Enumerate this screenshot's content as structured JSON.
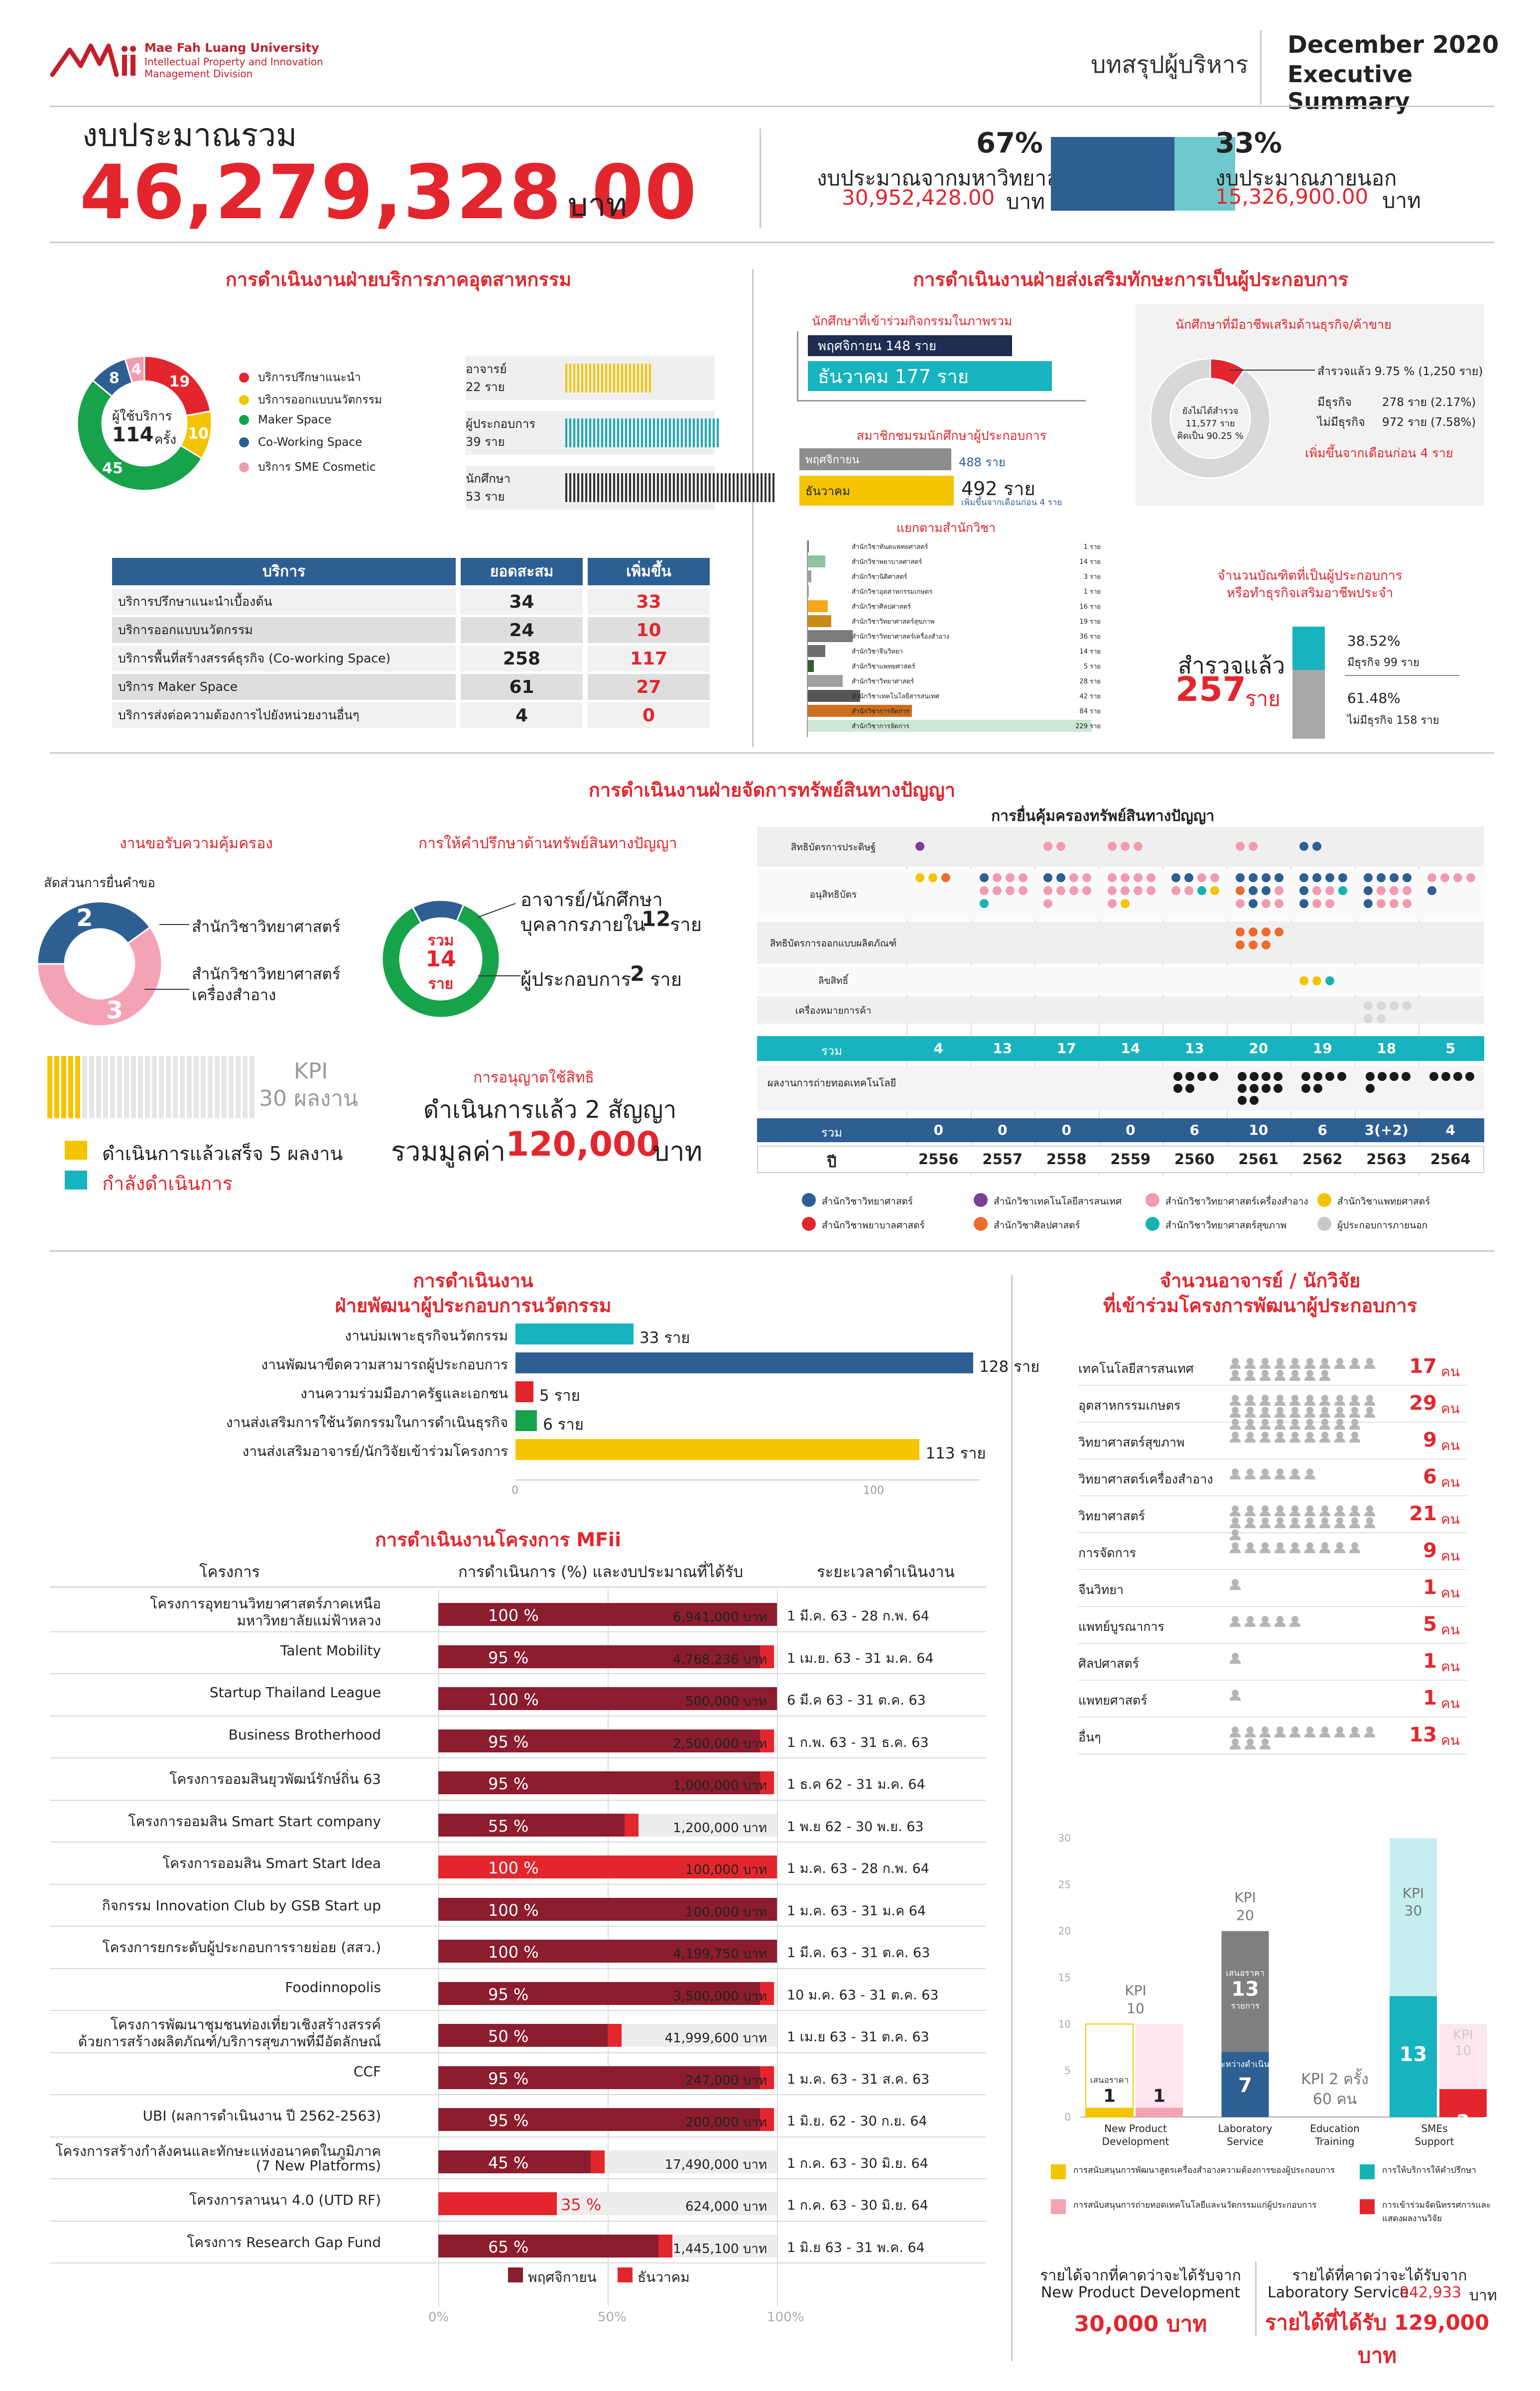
{
  "header": {
    "logo_text": "Mae Fah Luang University",
    "logo_sub1": "Intellectual Property and Innovation",
    "logo_sub2": "Management Division",
    "summary_th": "บทสรุปผู้บริหาร",
    "date": "December 2020",
    "summary_en": "Executive Summary"
  },
  "budget": {
    "title": "งบประมาณรวม",
    "total": "46,279,328.00",
    "unit": "บาท",
    "inside_pct": "67%",
    "inside_label": "งบประมาณจากมหาวิทยาลัย",
    "inside_amount": "30,952,428.00",
    "inside_unit": "บาท",
    "inside_fraction": 0.67,
    "outside_pct": "33%",
    "outside_label": "งบประมาณภายนอก",
    "outside_amount": "15,326,900.00",
    "outside_unit": "บาท",
    "outside_fraction": 0.33,
    "inside_color": "#2d5f93",
    "outside_color": "#6fc9cc"
  },
  "industry": {
    "title": "การดำเนินงานฝ่ายบริการภาคอุตสาหกรรม",
    "donut_label1": "ผู้ใช้บริการ",
    "donut_total": "114",
    "donut_unit": "ครั้ง",
    "donut_values": [
      19,
      10,
      45,
      8,
      4
    ],
    "donut_value_labels": [
      "19",
      "10",
      "45",
      "8",
      "4"
    ],
    "donut_colors": [
      "#e3262d",
      "#f5c400",
      "#16a34a",
      "#2d5f93",
      "#f19bb0"
    ],
    "legend": [
      "บริการปรึกษาแนะนำ",
      "บริการออกแบบนวัตกรรม",
      "Maker Space",
      "Co-Working Space",
      "บริการ SME Cosmetic"
    ],
    "users": [
      {
        "label": "อาจารย์",
        "count": "22 ราย",
        "value": 22,
        "color": "#f5c400"
      },
      {
        "label": "ผู้ประกอบการ",
        "count": "39 ราย",
        "value": 39,
        "color": "#17a9b6"
      },
      {
        "label": "นักศึกษา",
        "count": "53 ราย",
        "value": 53,
        "color": "#333333"
      }
    ],
    "table": {
      "headers": [
        "บริการ",
        "ยอดสะสม",
        "เพิ่มขึ้น"
      ],
      "rows": [
        [
          "บริการปรึกษาแนะนำเบื้องต้น",
          "34",
          "33"
        ],
        [
          "บริการออกแบบนวัตกรรม",
          "24",
          "10"
        ],
        [
          "บริการพื้นที่สร้างสรรค์ธุรกิจ (Co-working Space)",
          "258",
          "117"
        ],
        [
          "บริการ Maker Space",
          "61",
          "27"
        ],
        [
          "บริการส่งต่อความต้องการไปยังหน่วยงานอื่นๆ",
          "4",
          "0"
        ]
      ]
    }
  },
  "entre": {
    "title": "การดำเนินงานฝ่ายส่งเสริมทักษะการเป็นผู้ประกอบการ",
    "part_title": "นักศึกษาที่เข้าร่วมกิจกรรมในภาพรวม",
    "part_nov": "พฤศจิกายน 148 ราย",
    "part_dec": "ธันวาคม 177 ราย",
    "part_nov_value": 148,
    "part_dec_value": 177,
    "club_title": "สมาชิกชมรมนักศึกษาผู้ประกอบการ",
    "club_nov_label": "พฤศจิกายน",
    "club_nov": "488 ราย",
    "club_dec_label": "ธันวาคม",
    "club_dec": "492 ราย",
    "club_note": "เพิ่มขึ้นจากเดือนก่อน 4 ราย",
    "school_title": "แยกตามสำนักวิชา",
    "schools": [
      {
        "name": "สำนักวิชาทันตแพทยศาสตร์",
        "count": "1 ราย",
        "value": 1,
        "color": "#6f6f6f"
      },
      {
        "name": "สำนักวิชาพยาบาลศาสตร์",
        "count": "14 ราย",
        "value": 14,
        "color": "#8bc3a0"
      },
      {
        "name": "สำนักวิชานิติศาสตร์",
        "count": "3 ราย",
        "value": 3,
        "color": "#a0a0a0"
      },
      {
        "name": "สำนักวิชาอุตสาหกรรมเกษตร",
        "count": "1 ราย",
        "value": 1,
        "color": "#a0a0a0"
      },
      {
        "name": "สำนักวิชาศิลปศาสตร์",
        "count": "16 ราย",
        "value": 16,
        "color": "#f4a81d"
      },
      {
        "name": "สำนักวิชาวิทยาศาสตร์สุขภาพ",
        "count": "19 ราย",
        "value": 19,
        "color": "#c88a1a"
      },
      {
        "name": "สำนักวิชาวิทยาศาสตร์เครื่องสำอาง",
        "count": "36 ราย",
        "value": 36,
        "color": "#7b7b7b"
      },
      {
        "name": "สำนักวิชาจีนวิทยา",
        "count": "14 ราย",
        "value": 14,
        "color": "#6e6e6e"
      },
      {
        "name": "สำนักวิชาแพทยศาสตร์",
        "count": "5 ราย",
        "value": 5,
        "color": "#2f5f2f"
      },
      {
        "name": "สำนักวิชาวิทยาศาสตร์",
        "count": "28 ราย",
        "value": 28,
        "color": "#a0a0a0"
      },
      {
        "name": "สำนักวิชาเทคโนโลยีสารสนเทศ",
        "count": "42 ราย",
        "value": 42,
        "color": "#555555"
      },
      {
        "name": "สำนักวิชาการจัดการ",
        "count": "84 ราย",
        "value": 84,
        "color": "#cc6e1e"
      },
      {
        "name": "สำนักวิชาการจัดการ",
        "count": "229 ราย",
        "value": 229,
        "color": "#a8d9b8"
      }
    ],
    "career_title": "นักศึกษาที่มีอาชีพเสริมด้านธุรกิจ/ค้าขาย",
    "career_surveyed": "สำรวจแล้ว 9.75 % (1,250 ราย)",
    "career_not": "ยังไม่ได้สำรวจ",
    "career_not2": "11,577 ราย",
    "career_not3": "คิดเป็น 90.25 %",
    "career_fraction": 0.0975,
    "career_has": "มีธุรกิจ",
    "career_has_v": "278 ราย (2.17%)",
    "career_no": "ไม่มีธุรกิจ",
    "career_no_v": "972 ราย (7.58%)",
    "career_increase": "เพิ่มขึ้นจากเดือนก่อน 4 ราย",
    "grad_title1": "จำนวนบัณฑิตที่เป็นผู้ประกอบการ",
    "grad_title2": "หรือทำธุรกิจเสริมอาชีพประจำ",
    "grad_surveyed": "สำรวจแล้ว",
    "grad_total": "257",
    "grad_unit": "ราย",
    "grad_has_pct": "38.52%",
    "grad_has": "มีธุรกิจ 99 ราย",
    "grad_no_pct": "61.48%",
    "grad_no": "ไม่มีธุรกิจ 158 ราย",
    "grad_has_fraction": 0.3852
  },
  "ip": {
    "title": "การดำเนินงานฝ่ายจัดการทรัพย์สินทางปัญญา",
    "protect_title": "งานขอรับความคุ้มครอง",
    "protect_sub": "สัดส่วนการยื่นคำขอ",
    "protect_values": [
      2,
      3
    ],
    "protect_labels": [
      "2",
      "3"
    ],
    "protect_colors": [
      "#2d5f93",
      "#f4a3b5"
    ],
    "protect_legend1": "สำนักวิชาวิทยาศาสตร์",
    "protect_legend2a": "สำนักวิชาวิทยาศาสตร์",
    "protect_legend2b": "เครื่องสำอาง",
    "kpi_label": "KPI",
    "kpi_value": "30 ผลงาน",
    "kpi_done": "ดำเนินการแล้วเสร็จ 5 ผลงาน",
    "kpi_doing": "กำลังดำเนินการ",
    "consult_title": "การให้คำปรึกษาด้านทรัพย์สินทางปัญญา",
    "consult_sum": "รวม",
    "consult_total": "14",
    "consult_unit": "ราย",
    "consult_values": [
      12,
      2
    ],
    "consult_l1a": "อาจารย์/นักศึกษา",
    "consult_l1b": "บุคลากรภายใน",
    "consult_l1n": "12",
    "consult_l1u": "ราย",
    "consult_l2": "ผู้ประกอบการ",
    "consult_l2n": "2",
    "consult_l2u": "ราย",
    "license_title": "การอนุญาตใช้สิทธิ",
    "license_text": "ดำเนินการแล้ว 2 สัญญา",
    "license_value_label": "รวมมูลค่า",
    "license_value": "120,000",
    "license_unit": "บาท",
    "grid_title": "การยื่นคุ้มครองทรัพย์สินทางปัญญา",
    "row_labels": [
      "สิทธิบัตรการประดิษฐ์",
      "อนุสิทธิบัตร",
      "สิทธิบัตรการออกแบบผลิตภัณฑ์",
      "ลิขสิทธิ์",
      "เครื่องหมายการค้า"
    ],
    "sum_label": "รวม",
    "sums": [
      "4",
      "13",
      "17",
      "14",
      "13",
      "20",
      "19",
      "18",
      "5"
    ],
    "transfer_label": "ผลงานการถ่ายทอดเทคโนโลยี",
    "sum2_label": "รวม",
    "sums2": [
      "0",
      "0",
      "0",
      "0",
      "6",
      "10",
      "6",
      "3(+2)",
      "4"
    ],
    "year_label": "ปี",
    "years": [
      "2556",
      "2557",
      "2558",
      "2559",
      "2560",
      "2561",
      "2562",
      "2563",
      "2564"
    ],
    "legend": [
      {
        "t": "สำนักวิชาวิทยาศาสตร์",
        "c": "#2d5f93"
      },
      {
        "t": "สำนักวิชาเทคโนโลยีสารสนเทศ",
        "c": "#7b3f98"
      },
      {
        "t": "สำนักวิชาวิทยาศาสตร์เครื่องสำอาง",
        "c": "#f19bb0"
      },
      {
        "t": "สำนักวิชาแพทยศาสตร์",
        "c": "#f5c400"
      },
      {
        "t": "สำนักวิชาพยาบาลศาสตร์",
        "c": "#e3262d"
      },
      {
        "t": "สำนักวิชาศิลปศาสตร์",
        "c": "#ee6c2b"
      },
      {
        "t": "สำนักวิชาวิทยาศาสตร์สุขภาพ",
        "c": "#17b3b3"
      },
      {
        "t": "ผู้ประกอบการภายนอก",
        "c": "#c8c8c8"
      }
    ]
  },
  "innov": {
    "title1": "การดำเนินงาน",
    "title2": "ฝ่ายพัฒนาผู้ประกอบการนวัตกรรม",
    "bars": [
      {
        "label": "งานบ่มเพาะธุรกิจนวัตกรรม",
        "value": 33,
        "text": "33 ราย",
        "color": "#17b3be"
      },
      {
        "label": "งานพัฒนาขีดความสามารถผู้ประกอบการ",
        "value": 128,
        "text": "128 ราย",
        "color": "#2d5f93"
      },
      {
        "label": "งานความร่วมมือภาครัฐและเอกชน",
        "value": 5,
        "text": "5 ราย",
        "color": "#e3262d"
      },
      {
        "label": "งานส่งเสริมการใช้นวัตกรรมในการดำเนินธุรกิจ",
        "value": 6,
        "text": "6 ราย",
        "color": "#16a34a"
      },
      {
        "label": "งานส่งเสริมอาจารย์/นักวิจัยเข้าร่วมโครงการ",
        "value": 113,
        "text": "113 ราย",
        "color": "#f5c400"
      }
    ],
    "axis": [
      "0",
      "100"
    ]
  },
  "mfii": {
    "title": "การดำเนินงานโครงการ MFii",
    "col1": "โครงการ",
    "col2": "การดำเนินการ (%) และงบประมาณที่ได้รับ",
    "col3": "ระยะเวลาดำเนินงาน",
    "projects": [
      {
        "name": "โครงการอุทยานวิทยาศาสตร์ภาคเหนือ",
        "name2": "มหาวิทยาลัยแม่ฟ้าหลวง",
        "pct": 100,
        "pct_label": "100 %",
        "budget": "6,941,000 บาท",
        "period": "1 มี.ค. 63 - 28 ก.พ. 64",
        "dark": true
      },
      {
        "name": "Talent Mobility",
        "name2": "",
        "pct": 95,
        "pct_label": "95 %",
        "budget": "4,768,236 บาท",
        "period": "1 เม.ย. 63 - 31 ม.ค. 64",
        "dark": true
      },
      {
        "name": "Startup Thailand League",
        "name2": "",
        "pct": 100,
        "pct_label": "100 %",
        "budget": "500,000 บาท",
        "period": "6 มี.ค 63 - 31 ต.ค. 63",
        "dark": true
      },
      {
        "name": "Business Brotherhood",
        "name2": "",
        "pct": 95,
        "pct_label": "95 %",
        "budget": "2,500,000 บาท",
        "period": "1 ก.พ. 63 - 31 ธ.ค. 63",
        "dark": true
      },
      {
        "name": "โครงการออมสินยุวพัฒน์รักษ์ถิ่น 63",
        "name2": "",
        "pct": 95,
        "pct_label": "95 %",
        "budget": "1,000,000 บาท",
        "period": "1 ธ.ค 62 - 31 ม.ค. 64",
        "dark": true
      },
      {
        "name": "โครงการออมสิน Smart Start company",
        "name2": "",
        "pct": 55,
        "pct_label": "55 %",
        "budget": "1,200,000 บาท",
        "period": "1 พ.ย 62 - 30 พ.ย. 63",
        "dark": true
      },
      {
        "name": "โครงการออมสิน Smart Start Idea",
        "name2": "",
        "pct": 100,
        "pct_label": "100 %",
        "budget": "100,000 บาท",
        "period": "1 ม.ค. 63 - 28 ก.พ. 64",
        "dark": false
      },
      {
        "name": "กิจกรรม Innovation Club by GSB Start up",
        "name2": "",
        "pct": 100,
        "pct_label": "100 %",
        "budget": "100,000 บาท",
        "period": "1 ม.ค. 63 - 31 ม.ค 64",
        "dark": true
      },
      {
        "name": "โครงการยกระดับผู้ประกอบการรายย่อย (สสว.)",
        "name2": "",
        "pct": 100,
        "pct_label": "100 %",
        "budget": "4,199,750 บาท",
        "period": "1 มี.ค. 63 - 31 ต.ค. 63",
        "dark": true
      },
      {
        "name": "Foodinnopolis",
        "name2": "",
        "pct": 95,
        "pct_label": "95 %",
        "budget": "3,500,000 บาท",
        "period": "10 ม.ค. 63 - 31 ต.ค. 63",
        "dark": true
      },
      {
        "name": "โครงการพัฒนาชุมชนท่องเที่ยวเชิงสร้างสรรค์",
        "name2": "ด้วยการสร้างผลิตภัณฑ์/บริการสุขภาพที่มีอัตลักษณ์",
        "pct": 50,
        "pct_label": "50 %",
        "budget": "41,999,600 บาท",
        "period": "1 เม.ย 63 - 31 ต.ค. 63",
        "dark": true
      },
      {
        "name": "CCF",
        "name2": "",
        "pct": 95,
        "pct_label": "95 %",
        "budget": "247,000 บาท",
        "period": "1 ม.ค. 63 - 31 ส.ค. 63",
        "dark": true
      },
      {
        "name": "UBI (ผลการดำเนินงาน ปี 2562-2563)",
        "name2": "",
        "pct": 95,
        "pct_label": "95 %",
        "budget": "200,000 บาท",
        "period": "1 มิ.ย. 62 - 30 ก.ย. 64",
        "dark": true
      },
      {
        "name": "โครงการสร้างกำลังคนและทักษะแห่งอนาคตในภูมิภาค",
        "name2": "(7 New Platforms)",
        "pct": 45,
        "pct_label": "45 %",
        "budget": "17,490,000 บาท",
        "period": "1 ก.ค. 63 - 30 มิ.ย. 64",
        "dark": true
      },
      {
        "name": "โครงการลานนา 4.0 (UTD RF)",
        "name2": "",
        "pct": 35,
        "pct_label": "35 %",
        "budget": "624,000 บาท",
        "period": "1 ก.ค. 63 - 30 มิ.ย. 64",
        "dark": false
      },
      {
        "name": "โครงการ Research Gap Fund",
        "name2": "",
        "pct": 65,
        "pct_label": "65 %",
        "budget": "1,445,100 บาท",
        "period": "1 มิ.ย 63 - 31 พ.ค. 64",
        "dark": true
      }
    ],
    "legend_nov": "พฤศจิกายน",
    "legend_dec": "ธันวาคม",
    "axis": [
      "0%",
      "50%",
      "100%"
    ]
  },
  "research": {
    "title1": "จำนวนอาจารย์ / นักวิจัย",
    "title2": "ที่เข้าร่วมโครงการพัฒนาผู้ประกอบการ",
    "rows": [
      {
        "name": "เทคโนโลยีสารสนเทศ",
        "n": 17,
        "text": "17",
        "unit": "คน"
      },
      {
        "name": "อุตสาหกรรมเกษตร",
        "n": 29,
        "text": "29",
        "unit": "คน"
      },
      {
        "name": "วิทยาศาสตร์สุขภาพ",
        "n": 9,
        "text": "9",
        "unit": "คน"
      },
      {
        "name": "วิทยาศาสตร์เครื่องสำอาง",
        "n": 6,
        "text": "6",
        "unit": "คน"
      },
      {
        "name": "วิทยาศาสตร์",
        "n": 21,
        "text": "21",
        "unit": "คน"
      },
      {
        "name": "การจัดการ",
        "n": 9,
        "text": "9",
        "unit": "คน"
      },
      {
        "name": "จีนวิทยา",
        "n": 1,
        "text": "1",
        "unit": "คน"
      },
      {
        "name": "แพทย์บูรณาการ",
        "n": 5,
        "text": "5",
        "unit": "คน"
      },
      {
        "name": "ศิลปศาสตร์",
        "n": 1,
        "text": "1",
        "unit": "คน"
      },
      {
        "name": "แพทยศาสตร์",
        "n": 1,
        "text": "1",
        "unit": "คน"
      },
      {
        "name": "อื่นๆ",
        "n": 13,
        "text": "13",
        "unit": "คน"
      }
    ]
  },
  "chart_data": {
    "type": "bar",
    "title": "",
    "yticks": [
      "0",
      "5",
      "10",
      "15",
      "20",
      "25",
      "30"
    ],
    "ylim": [
      0,
      30
    ],
    "categories": [
      "New Product Development",
      "Laboratory Service",
      "Education Training",
      "SMEs Support"
    ],
    "npd": {
      "kpi_label": "KPI",
      "kpi": "10",
      "kpi_value": 10,
      "a": 1,
      "a_label": "1",
      "a_note": "เสนอราคา",
      "b": 1,
      "b_label": "1"
    },
    "lab": {
      "kpi_label": "KPI",
      "kpi": "20",
      "kpi_value": 20,
      "done": 7,
      "done_label": "7",
      "done_note": "อยู่ระหว่างดำเนินการ",
      "quote": 13,
      "quote_label": "13",
      "quote_note": "เสนอราคา",
      "quote_note2": "รายการ"
    },
    "edu": {
      "text1": "KPI 2 ครั้ง",
      "text2": "60 คน"
    },
    "sme": {
      "kpi_label": "KPI",
      "kpi_a": "30",
      "kpi_a_value": 30,
      "a": 13,
      "a_label": "13",
      "kpi_b": "10",
      "kpi_b_value": 10,
      "b": 3,
      "b_label": "3"
    },
    "legend": [
      {
        "t": "การสนับสนุนการพัฒนาสูตรเครื่องสำอางความต้องการของผู้ประกอบการ",
        "c": "#f5c400"
      },
      {
        "t": "การให้บริการให้คำปรึกษา",
        "c": "#17b3b3"
      },
      {
        "t": "การสนับสนุนการถ่ายทอดเทคโนโลยีและนวัตกรรมแก่ผู้ประกอบการ",
        "c": "#f4a3b5"
      },
      {
        "t": "การเข้าร่วมจัดนิทรรศการและแสดงผลงานวิจัย",
        "c": "#e3262d"
      }
    ]
  },
  "income": {
    "l1": "รายได้จากที่คาดว่าจะได้รับจาก",
    "l2": "New Product Development",
    "l3": "30,000 บาท",
    "r1": "รายได้ที่คาดว่าจะได้รับจาก",
    "r2": "Laboratory Service",
    "r2v": "942,933",
    "r2u": "บาท",
    "r3": "รายได้ที่ได้รับ 129,000 บาท"
  }
}
